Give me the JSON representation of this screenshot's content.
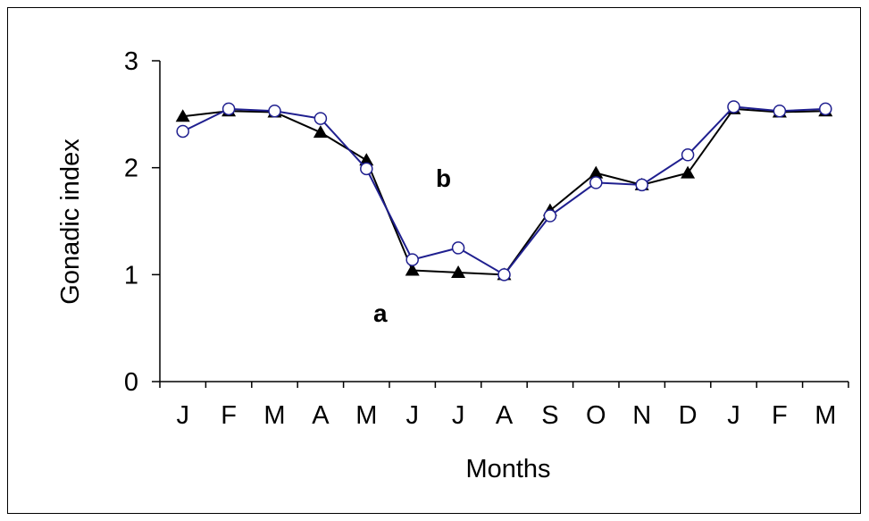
{
  "chart_data": {
    "type": "line",
    "title": "",
    "xlabel": "Months",
    "ylabel": "Gonadic index",
    "categories": [
      "J",
      "F",
      "M",
      "A",
      "M",
      "J",
      "J",
      "A",
      "S",
      "O",
      "N",
      "D",
      "J",
      "F",
      "M"
    ],
    "yticks": [
      "0",
      "1",
      "2",
      "3"
    ],
    "ylim": [
      0,
      3
    ],
    "grid": false,
    "series": [
      {
        "marker": "filled-triangle",
        "color": "#000000",
        "values": [
          2.48,
          2.53,
          2.52,
          2.33,
          2.07,
          1.04,
          1.02,
          1.0,
          1.6,
          1.95,
          1.84,
          1.95,
          2.55,
          2.52,
          2.53
        ]
      },
      {
        "marker": "open-circle",
        "color": "#1f1f8f",
        "values": [
          2.34,
          2.55,
          2.53,
          2.46,
          1.99,
          1.14,
          1.25,
          1.0,
          1.55,
          1.86,
          1.84,
          2.12,
          2.57,
          2.53,
          2.55
        ]
      }
    ],
    "annotations": [
      "b",
      "a"
    ]
  }
}
